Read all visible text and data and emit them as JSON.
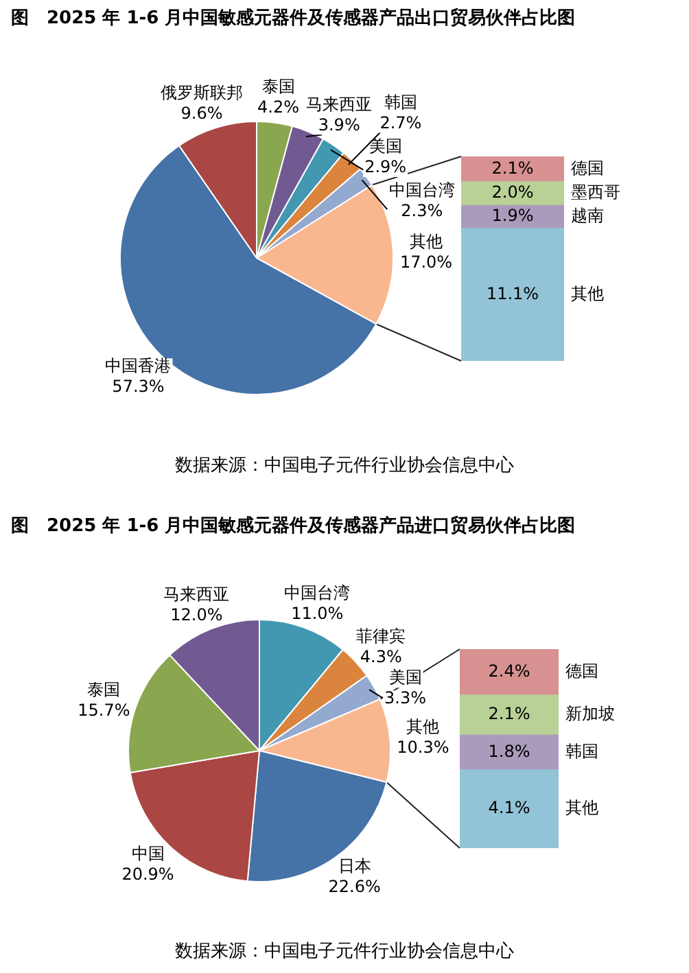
{
  "chart_data": [
    {
      "type": "pie",
      "title": "图　2025 年 1-6 月中国敏感元器件及传感器产品出口贸易伙伴占比图",
      "annotations": [
        "数据来源：中国电子元件行业协会信息中心"
      ],
      "categories": [
        "泰国",
        "马来西亚",
        "美国",
        "韩国",
        "中国台湾",
        "其他",
        "中国香港",
        "俄罗斯联邦"
      ],
      "values": [
        4.2,
        3.9,
        2.9,
        2.7,
        2.3,
        17.0,
        57.3,
        9.6
      ],
      "value_labels": [
        "4.2%",
        "3.9%",
        "2.9%",
        "2.7%",
        "2.3%",
        "17.0%",
        "57.3%",
        "9.6%"
      ],
      "colors": [
        "#8aa64e",
        "#715a91",
        "#4298b0",
        "#db843d",
        "#93a9cf",
        "#f9b790",
        "#4572a7",
        "#aa4643"
      ]
    },
    {
      "type": "bar",
      "stacked": true,
      "categories": [
        null
      ],
      "series": [
        {
          "name": "其他",
          "color": "#93c3d6",
          "values": [
            11.1
          ],
          "value_labels": [
            "11.1%"
          ]
        },
        {
          "name": "越南",
          "color": "#aa9bbd",
          "values": [
            1.9
          ],
          "value_labels": [
            "1.9%"
          ]
        },
        {
          "name": "墨西哥",
          "color": "#b9d096",
          "values": [
            2.0
          ],
          "value_labels": [
            "2.0%"
          ]
        },
        {
          "name": "德国",
          "color": "#d69190",
          "values": [
            2.1
          ],
          "value_labels": [
            "2.1%"
          ]
        }
      ]
    },
    {
      "type": "pie",
      "title": "图　2025 年 1-6 月中国敏感元器件及传感器产品进口贸易伙伴占比图",
      "annotations": [
        "数据来源：中国电子元件行业协会信息中心"
      ],
      "categories": [
        "中国台湾",
        "菲律宾",
        "美国",
        "其他",
        "日本",
        "中国",
        "泰国",
        "马来西亚"
      ],
      "values": [
        11.0,
        4.3,
        3.3,
        10.3,
        22.6,
        20.9,
        15.7,
        12.0
      ],
      "value_labels": [
        "11.0%",
        "4.3%",
        "3.3%",
        "10.3%",
        "22.6%",
        "20.9%",
        "15.7%",
        "12.0%"
      ],
      "colors": [
        "#4298b0",
        "#db843d",
        "#93a9cf",
        "#f9b790",
        "#4572a7",
        "#aa4643",
        "#8aa64e",
        "#715a91"
      ]
    },
    {
      "type": "bar",
      "stacked": true,
      "categories": [
        null
      ],
      "series": [
        {
          "name": "其他",
          "color": "#93c3d6",
          "values": [
            4.1
          ],
          "value_labels": [
            "4.1%"
          ]
        },
        {
          "name": "韩国",
          "color": "#aa9bbd",
          "values": [
            1.8
          ],
          "value_labels": [
            "1.8%"
          ]
        },
        {
          "name": "新加坡",
          "color": "#b9d096",
          "values": [
            2.1
          ],
          "value_labels": [
            "2.1%"
          ]
        },
        {
          "name": "德国",
          "color": "#d69190",
          "values": [
            2.4
          ],
          "value_labels": [
            "2.4%"
          ]
        }
      ]
    }
  ]
}
